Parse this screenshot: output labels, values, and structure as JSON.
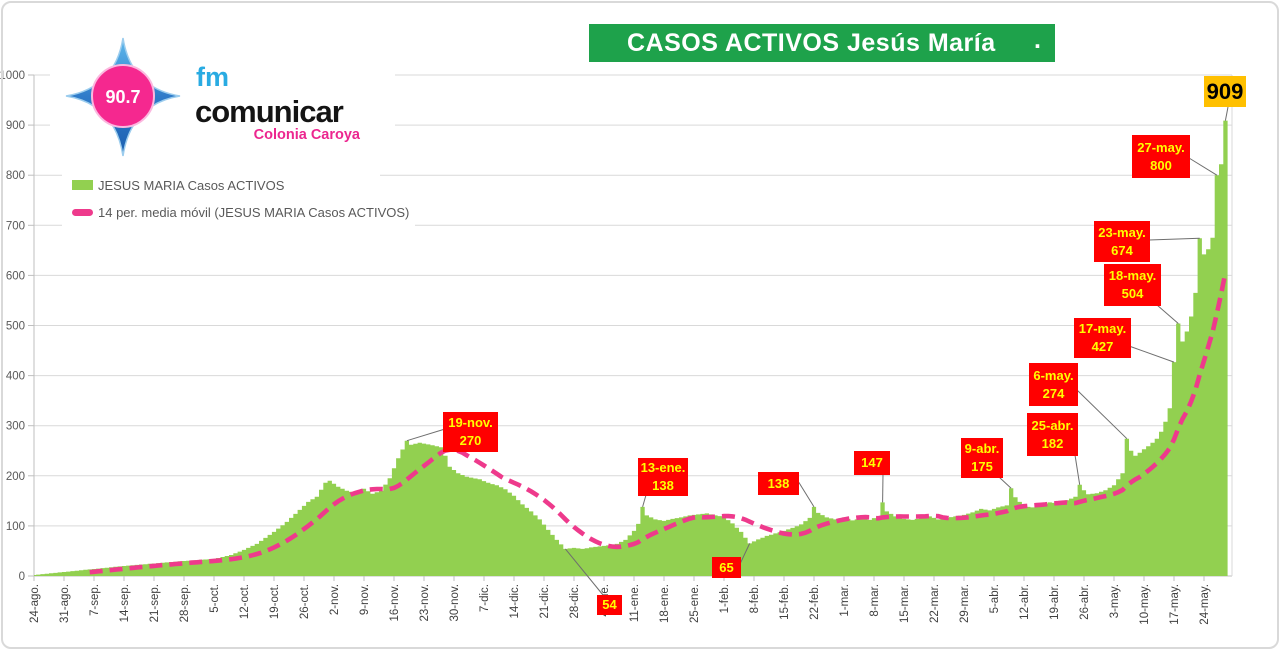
{
  "banner": {
    "title": "CASOS ACTIVOS  Jesús María",
    "dot": "."
  },
  "logo": {
    "frequency": "90.7",
    "fm": "fm",
    "name": "comunicar",
    "city": "Colonia Caroya"
  },
  "legend": {
    "series_label": "JESUS MARIA Casos ACTIVOS",
    "moving_avg_label": "14 per. media móvil (JESUS MARIA Casos ACTIVOS)"
  },
  "colors": {
    "bars": "#92D050",
    "moving_avg": "#EE3A8C",
    "banner_green": "#1EA24B",
    "annotation_bg": "#FF0000",
    "annotation_text": "#FFFF00",
    "max_label_bg": "#FFC000",
    "grid": "#D9D9D9",
    "axis": "#BFBFBF",
    "axis_text": "#595959"
  },
  "chart_data": {
    "type": "area",
    "title": "CASOS ACTIVOS Jesús María",
    "xlabel": "",
    "ylabel": "",
    "ylim": [
      0,
      1000
    ],
    "yticks": [
      0,
      100,
      200,
      300,
      400,
      500,
      600,
      700,
      800,
      900,
      1000
    ],
    "grid": "horizontal",
    "legend_position": "top-left",
    "x_tick_labels": [
      "24-ago.",
      "31-ago.",
      "7-sep.",
      "14-sep.",
      "21-sep.",
      "28-sep.",
      "5-oct.",
      "12-oct.",
      "19-oct.",
      "26-oct.",
      "2-nov.",
      "9-nov.",
      "16-nov.",
      "23-nov.",
      "30-nov.",
      "7-dic.",
      "14-dic.",
      "21-dic.",
      "28-dic.",
      "4-ene.",
      "11-ene.",
      "18-ene.",
      "25-ene.",
      "1-feb.",
      "8-feb.",
      "15-feb.",
      "22-feb.",
      "1-mar.",
      "8-mar.",
      "15-mar.",
      "22-mar.",
      "29-mar.",
      "5-abr.",
      "12-abr.",
      "19-abr.",
      "26-abr.",
      "3-may.",
      "10-may.",
      "17-may.",
      "24-may."
    ],
    "series": [
      {
        "name": "JESUS MARIA Casos ACTIVOS",
        "render": "daily-step-area",
        "note": "daily values; anchors as [day_index_from_24-ago, active_cases], linear interpolation between anchors",
        "anchors": [
          [
            0,
            2
          ],
          [
            7,
            8
          ],
          [
            14,
            14
          ],
          [
            21,
            20
          ],
          [
            28,
            25
          ],
          [
            35,
            30
          ],
          [
            42,
            34
          ],
          [
            46,
            42
          ],
          [
            49,
            52
          ],
          [
            52,
            64
          ],
          [
            56,
            88
          ],
          [
            59,
            108
          ],
          [
            62,
            132
          ],
          [
            64,
            148
          ],
          [
            66,
            158
          ],
          [
            68,
            186
          ],
          [
            69,
            190
          ],
          [
            71,
            178
          ],
          [
            73,
            170
          ],
          [
            75,
            166
          ],
          [
            77,
            174
          ],
          [
            79,
            164
          ],
          [
            81,
            170
          ],
          [
            83,
            195
          ],
          [
            85,
            235
          ],
          [
            87,
            270
          ],
          [
            88,
            262
          ],
          [
            90,
            266
          ],
          [
            93,
            261
          ],
          [
            95,
            257
          ],
          [
            96,
            240
          ],
          [
            97,
            218
          ],
          [
            99,
            205
          ],
          [
            101,
            198
          ],
          [
            104,
            193
          ],
          [
            106,
            186
          ],
          [
            108,
            181
          ],
          [
            110,
            173
          ],
          [
            112,
            160
          ],
          [
            114,
            143
          ],
          [
            116,
            129
          ],
          [
            118,
            113
          ],
          [
            120,
            92
          ],
          [
            122,
            72
          ],
          [
            124,
            54
          ],
          [
            126,
            56
          ],
          [
            128,
            54
          ],
          [
            130,
            57
          ],
          [
            132,
            59
          ],
          [
            134,
            61
          ],
          [
            136,
            64
          ],
          [
            138,
            72
          ],
          [
            140,
            90
          ],
          [
            141,
            104
          ],
          [
            142,
            138
          ],
          [
            143,
            121
          ],
          [
            145,
            113
          ],
          [
            147,
            110
          ],
          [
            149,
            114
          ],
          [
            151,
            117
          ],
          [
            153,
            121
          ],
          [
            155,
            123
          ],
          [
            157,
            125
          ],
          [
            159,
            121
          ],
          [
            161,
            118
          ],
          [
            163,
            105
          ],
          [
            165,
            88
          ],
          [
            167,
            65
          ],
          [
            169,
            73
          ],
          [
            171,
            80
          ],
          [
            173,
            85
          ],
          [
            175,
            90
          ],
          [
            177,
            96
          ],
          [
            179,
            103
          ],
          [
            181,
            116
          ],
          [
            182,
            138
          ],
          [
            183,
            126
          ],
          [
            185,
            117
          ],
          [
            187,
            113
          ],
          [
            189,
            117
          ],
          [
            191,
            111
          ],
          [
            193,
            115
          ],
          [
            195,
            112
          ],
          [
            197,
            119
          ],
          [
            198,
            147
          ],
          [
            199,
            129
          ],
          [
            201,
            119
          ],
          [
            203,
            114
          ],
          [
            205,
            112
          ],
          [
            207,
            116
          ],
          [
            209,
            119
          ],
          [
            211,
            113
          ],
          [
            213,
            116
          ],
          [
            215,
            119
          ],
          [
            217,
            122
          ],
          [
            219,
            127
          ],
          [
            221,
            134
          ],
          [
            223,
            131
          ],
          [
            225,
            137
          ],
          [
            227,
            141
          ],
          [
            228,
            175
          ],
          [
            229,
            157
          ],
          [
            231,
            139
          ],
          [
            233,
            137
          ],
          [
            235,
            142
          ],
          [
            237,
            147
          ],
          [
            239,
            145
          ],
          [
            241,
            151
          ],
          [
            243,
            158
          ],
          [
            244,
            182
          ],
          [
            245,
            171
          ],
          [
            246,
            163
          ],
          [
            248,
            165
          ],
          [
            250,
            171
          ],
          [
            252,
            181
          ],
          [
            254,
            205
          ],
          [
            255,
            274
          ],
          [
            256,
            250
          ],
          [
            257,
            240
          ],
          [
            258,
            246
          ],
          [
            259,
            253
          ],
          [
            260,
            259
          ],
          [
            261,
            266
          ],
          [
            262,
            274
          ],
          [
            263,
            288
          ],
          [
            264,
            308
          ],
          [
            265,
            335
          ],
          [
            266,
            427
          ],
          [
            267,
            504
          ],
          [
            268,
            468
          ],
          [
            269,
            488
          ],
          [
            270,
            518
          ],
          [
            271,
            565
          ],
          [
            272,
            674
          ],
          [
            273,
            642
          ],
          [
            274,
            652
          ],
          [
            275,
            675
          ],
          [
            276,
            800
          ],
          [
            277,
            822
          ],
          [
            278,
            909
          ]
        ]
      },
      {
        "name": "14 per. media móvil (JESUS MARIA Casos ACTIVOS)",
        "render": "moving-average",
        "window": 14
      }
    ],
    "annotations": [
      {
        "id": "a1",
        "date": "19-nov.",
        "value": 270,
        "day": 87
      },
      {
        "id": "a2",
        "date": "13-ene.",
        "value": 138,
        "day": 142
      },
      {
        "id": "a3",
        "value": 138,
        "day": 182
      },
      {
        "id": "a4",
        "value": 65,
        "day": 167
      },
      {
        "id": "a5",
        "value": 54,
        "day": 124
      },
      {
        "id": "a6",
        "value": 147,
        "day": 198
      },
      {
        "id": "a7",
        "date": "9-abr.",
        "value": 175,
        "day": 228
      },
      {
        "id": "a8",
        "date": "25-abr.",
        "value": 182,
        "day": 244
      },
      {
        "id": "a9",
        "date": "6-may.",
        "value": 274,
        "day": 255
      },
      {
        "id": "a10",
        "date": "17-may.",
        "value": 427,
        "day": 266
      },
      {
        "id": "a11",
        "date": "18-may.",
        "value": 504,
        "day": 267
      },
      {
        "id": "a12",
        "date": "23-may.",
        "value": 674,
        "day": 272
      },
      {
        "id": "a13",
        "date": "27-may.",
        "value": 800,
        "day": 276
      },
      {
        "id": "a14",
        "value": 909,
        "day": 278,
        "style": "max"
      }
    ]
  }
}
